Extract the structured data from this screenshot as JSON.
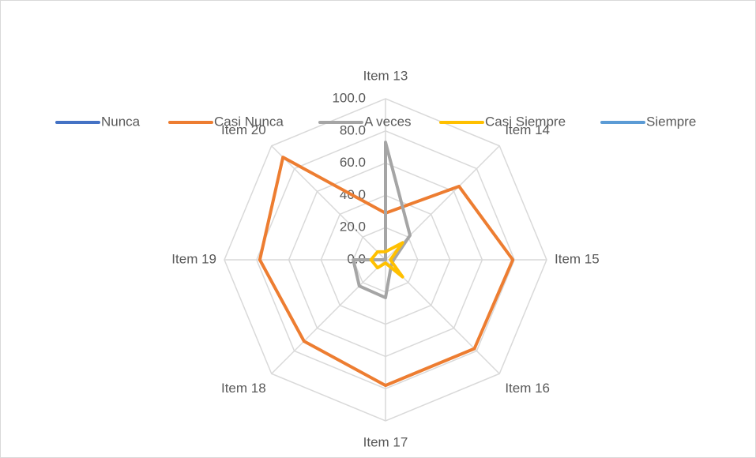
{
  "chart_data": {
    "type": "radar",
    "categories": [
      "Item 13",
      "Item 14",
      "Item 15",
      "Item 16",
      "Item 17",
      "Item 18",
      "Item 19",
      "Item 20"
    ],
    "series": [
      {
        "name": "Nunca",
        "color": "#4472c4",
        "values": [
          0,
          0,
          0,
          0,
          0,
          0,
          0,
          0
        ]
      },
      {
        "name": "Casi Nunca",
        "color": "#ed7d31",
        "values": [
          29,
          64.5,
          79,
          78,
          78,
          71.5,
          78,
          90
        ]
      },
      {
        "name": "A veces",
        "color": "#a5a5a5",
        "values": [
          73,
          21.5,
          5,
          5,
          23.5,
          23,
          20,
          0
        ]
      },
      {
        "name": "Casi Siempre",
        "color": "#ffc000",
        "values": [
          5,
          15,
          3,
          15,
          2,
          7,
          9,
          7
        ]
      },
      {
        "name": "Siempre",
        "color": "#5b9bd5",
        "values": [
          0,
          0,
          0,
          0,
          0,
          0,
          0,
          0
        ]
      }
    ],
    "rlim": [
      0,
      100
    ],
    "rticks": [
      {
        "value": 0,
        "label": "0.0"
      },
      {
        "value": 20,
        "label": "20.0"
      },
      {
        "value": 40,
        "label": "40.0"
      },
      {
        "value": 60,
        "label": "60.0"
      },
      {
        "value": 80,
        "label": "80.0"
      },
      {
        "value": 100,
        "label": "100.0"
      }
    ],
    "grid": true,
    "legend": "top"
  }
}
